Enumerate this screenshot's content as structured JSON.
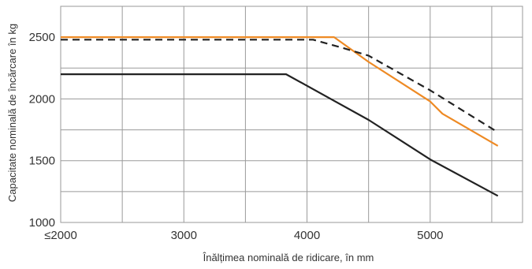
{
  "chart_data": {
    "type": "line",
    "title": "",
    "xlabel": "Înălțimea nominală de ridicare, în mm",
    "ylabel": "Capacitate nominală de încărcare în kg",
    "xlim": [
      2000,
      5750
    ],
    "ylim": [
      1000,
      2750
    ],
    "x_ticks": [
      {
        "value": 2000,
        "label": "≤2000"
      },
      {
        "value": 3000,
        "label": "3000"
      },
      {
        "value": 4000,
        "label": "4000"
      },
      {
        "value": 5000,
        "label": "5000"
      }
    ],
    "y_ticks": [
      {
        "value": 1000,
        "label": "1000"
      },
      {
        "value": 1500,
        "label": "1500"
      },
      {
        "value": 2000,
        "label": "2000"
      },
      {
        "value": 2500,
        "label": "2500"
      }
    ],
    "x_grid": [
      2000,
      2500,
      3000,
      3500,
      4000,
      4500,
      5000,
      5500
    ],
    "y_grid": [
      1000,
      1250,
      1500,
      1750,
      2000,
      2250,
      2500,
      2750
    ],
    "grid": true,
    "legend": "none",
    "series": [
      {
        "color": "#ee8a24",
        "dash": "solid",
        "points": [
          [
            2000,
            2500
          ],
          [
            4220,
            2500
          ],
          [
            4500,
            2300
          ],
          [
            5000,
            1980
          ],
          [
            5100,
            1880
          ],
          [
            5550,
            1620
          ]
        ]
      },
      {
        "color": "#222222",
        "dash": "dashed",
        "points": [
          [
            2000,
            2480
          ],
          [
            4050,
            2480
          ],
          [
            4300,
            2410
          ],
          [
            4500,
            2350
          ],
          [
            5000,
            2070
          ],
          [
            5550,
            1730
          ]
        ]
      },
      {
        "color": "#222222",
        "dash": "solid",
        "points": [
          [
            2000,
            2200
          ],
          [
            3830,
            2200
          ],
          [
            4500,
            1830
          ],
          [
            5000,
            1510
          ],
          [
            5550,
            1215
          ]
        ]
      }
    ]
  }
}
